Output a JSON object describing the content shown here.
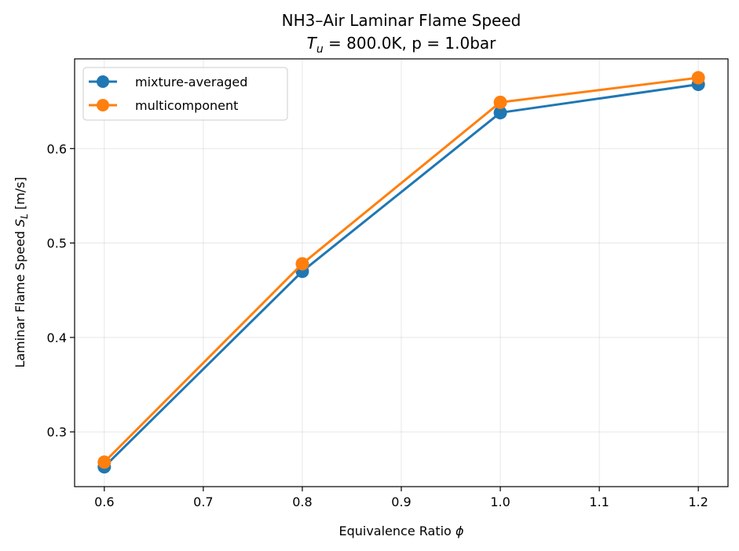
{
  "chart_data": {
    "type": "line",
    "title_line1": "NH3–Air Laminar Flame Speed",
    "title_line2_var": "T",
    "title_line2_sub": "u",
    "title_line2_rest": " = 800.0K, p = 1.0bar",
    "xlabel_text": "Equivalence Ratio ",
    "xlabel_symbol": "ϕ",
    "ylabel_text": "Laminar Flame Speed ",
    "ylabel_var": "S",
    "ylabel_sub": "L",
    "ylabel_unit": " [m/s]",
    "x": [
      0.6,
      0.8,
      1.0,
      1.2
    ],
    "xlim": [
      0.57,
      1.23
    ],
    "ylim": [
      0.242,
      0.695
    ],
    "xticks": [
      0.6,
      0.7,
      0.8,
      0.9,
      1.0,
      1.1,
      1.2
    ],
    "xtick_labels": [
      "0.6",
      "0.7",
      "0.8",
      "0.9",
      "1.0",
      "1.1",
      "1.2"
    ],
    "yticks": [
      0.3,
      0.4,
      0.5,
      0.6
    ],
    "ytick_labels": [
      "0.3",
      "0.4",
      "0.5",
      "0.6"
    ],
    "grid": true,
    "legend_position": "upper-left",
    "series": [
      {
        "name": "mixture-averaged",
        "values": [
          0.263,
          0.47,
          0.638,
          0.668
        ],
        "color": "#1f77b4",
        "marker": "circle"
      },
      {
        "name": "multicomponent",
        "values": [
          0.268,
          0.478,
          0.649,
          0.675
        ],
        "color": "#ff7f0e",
        "marker": "circle"
      }
    ]
  }
}
